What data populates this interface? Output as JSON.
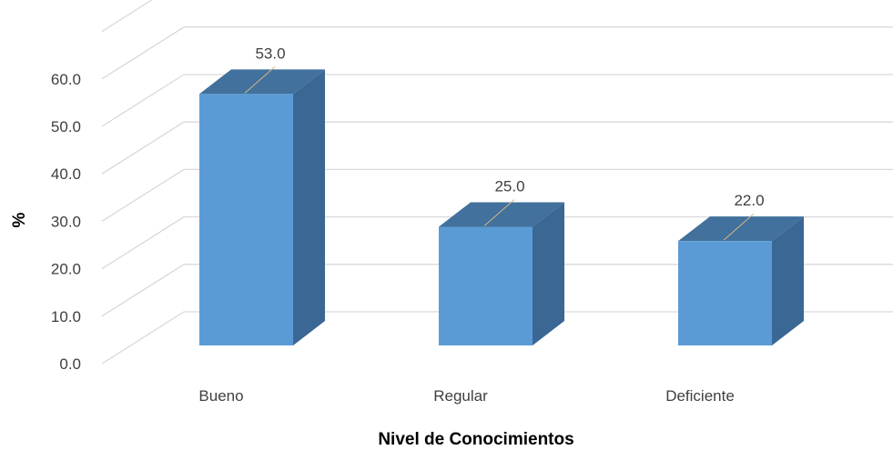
{
  "chart_data": {
    "type": "bar",
    "style": "3d-column",
    "categories": [
      "Bueno",
      "Regular",
      "Deficiente"
    ],
    "values": [
      53.0,
      25.0,
      22.0
    ],
    "value_labels": [
      "53.0",
      "25.0",
      "22.0"
    ],
    "xlabel": "Nivel de Conocimientos",
    "ylabel": "%",
    "ylim": [
      0,
      60
    ],
    "yticks": [
      "0.0",
      "10.0",
      "20.0",
      "30.0",
      "40.0",
      "50.0",
      "60.0"
    ],
    "grid": true,
    "legend": "none",
    "colors": {
      "front": "#5b9bd5",
      "side": "#3b6795",
      "top": "#41719c",
      "grid": "#d9d9d9",
      "leader": "#d9b48a"
    }
  }
}
